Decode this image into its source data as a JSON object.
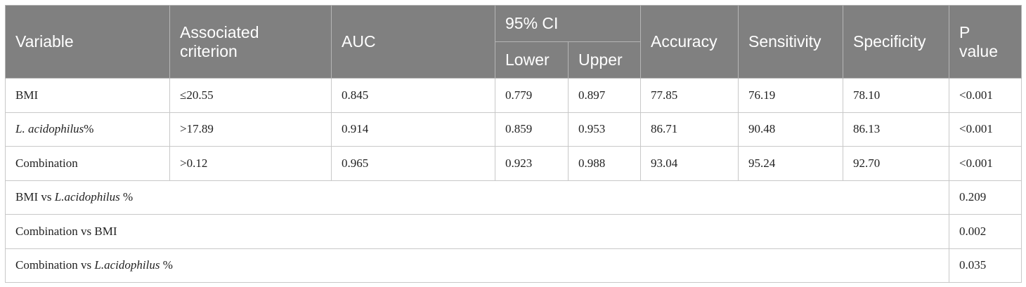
{
  "table": {
    "header": {
      "top": [
        "Variable",
        "Associated criterion",
        "AUC",
        "95% CI",
        "Accuracy",
        "Sensitivity",
        "Specificity",
        "P value"
      ],
      "sub": [
        "Lower",
        "Upper"
      ]
    },
    "rows": [
      [
        [
          {
            "text": "BMI",
            "italic": false
          }
        ],
        "≤20.55",
        "0.845",
        "0.779",
        "0.897",
        "77.85",
        "76.19",
        "78.10",
        "<0.001"
      ],
      [
        [
          {
            "text": "L. acidophilus",
            "italic": true
          },
          {
            "text": "%",
            "italic": false
          }
        ],
        ">17.89",
        "0.914",
        "0.859",
        "0.953",
        "86.71",
        "90.48",
        "86.13",
        "<0.001"
      ],
      [
        [
          {
            "text": "Combination",
            "italic": false
          }
        ],
        ">0.12",
        "0.965",
        "0.923",
        "0.988",
        "93.04",
        "95.24",
        "92.70",
        "<0.001"
      ]
    ],
    "comparisons": [
      {
        "label": [
          {
            "text": "BMI vs ",
            "italic": false
          },
          {
            "text": "L.acidophilus",
            "italic": true
          },
          {
            "text": " %",
            "italic": false
          }
        ],
        "p": "0.209"
      },
      {
        "label": [
          {
            "text": "Combination vs BMI",
            "italic": false
          }
        ],
        "p": "0.002"
      },
      {
        "label": [
          {
            "text": "Combination vs ",
            "italic": false
          },
          {
            "text": "L.acidophilus",
            "italic": true
          },
          {
            "text": " %",
            "italic": false
          }
        ],
        "p": "0.035"
      }
    ]
  }
}
